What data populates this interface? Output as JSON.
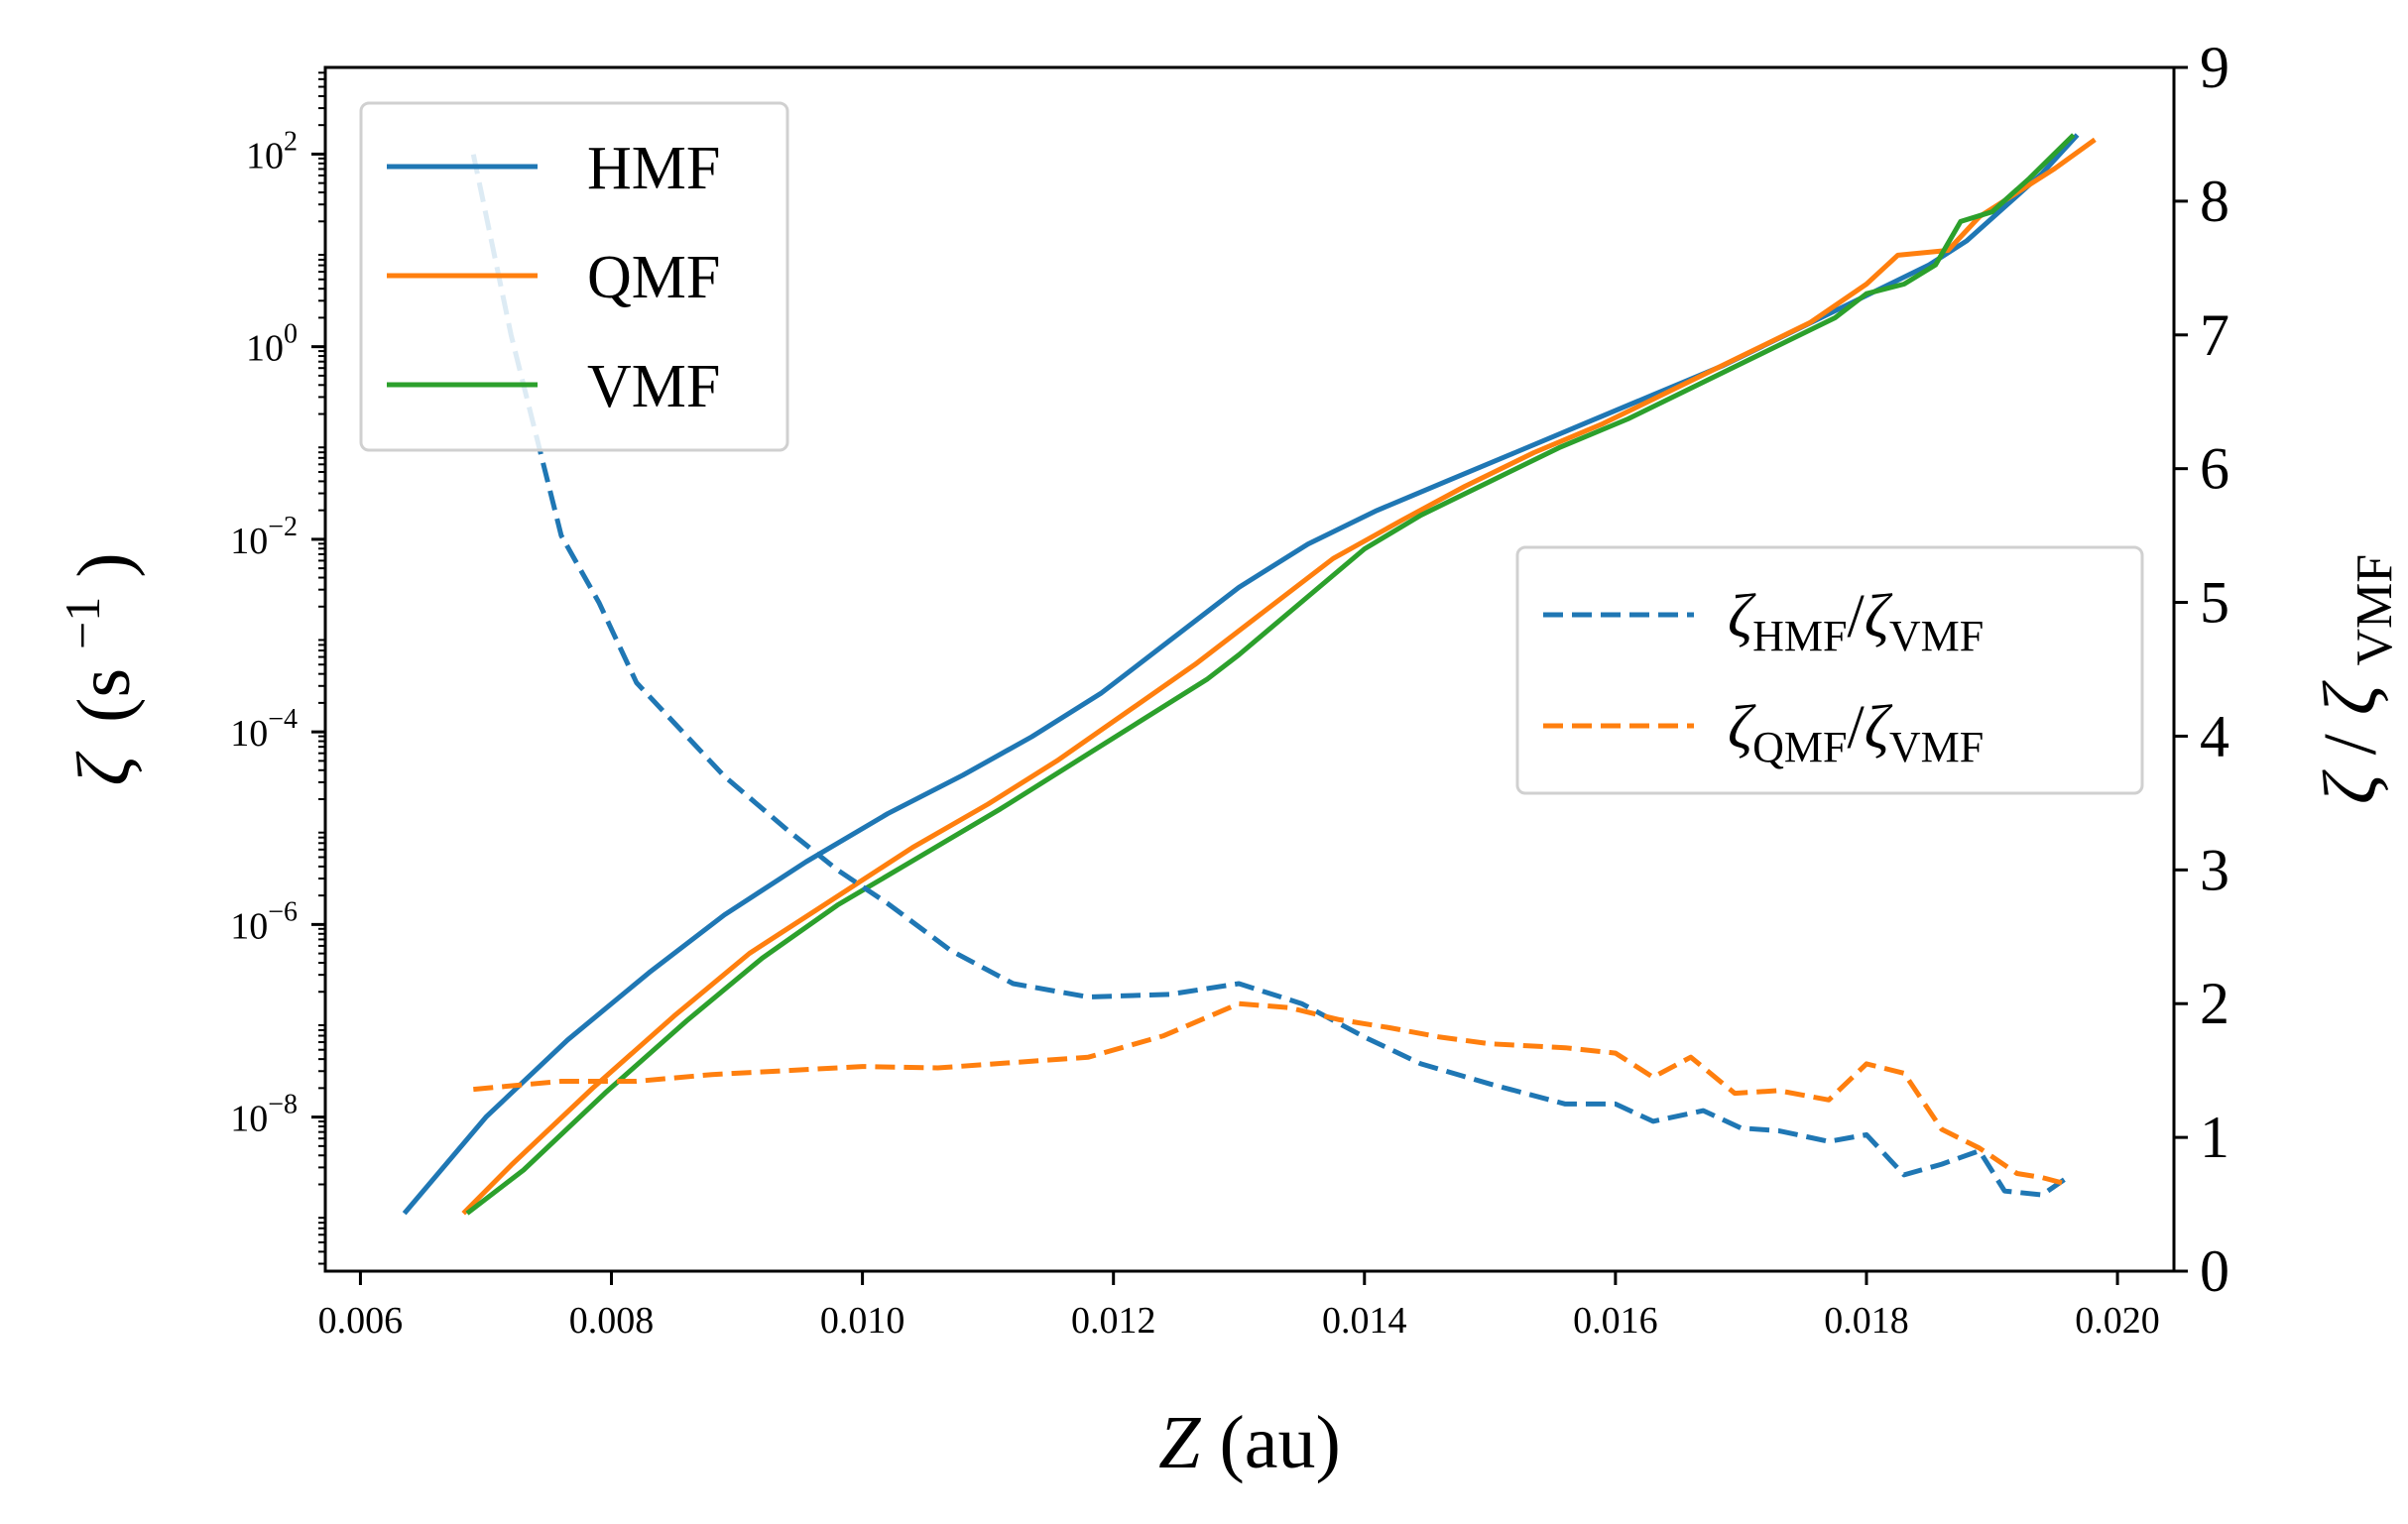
{
  "chart_data": {
    "type": "line",
    "xlabel_main": "Z",
    "xlabel_unit": "(au)",
    "ylabel_left_symbol": "ζ",
    "ylabel_left_unit": "(s",
    "ylabel_left_exp": "−1",
    "ylabel_left_close": ")",
    "ylabel_right_num": "ζ",
    "ylabel_right_slash": "/",
    "ylabel_right_den": "ζ",
    "ylabel_right_den_sub": "VMF",
    "xlim": [
      0.00572,
      0.02045
    ],
    "left_axis": {
      "scale": "log",
      "ylim_log10": [
        -9.6,
        2.9
      ],
      "ticks_log10": [
        2,
        0,
        -2,
        -4,
        -6,
        -8
      ],
      "tick_labels": [
        {
          "base": "10",
          "exp": "2"
        },
        {
          "base": "10",
          "exp": "0"
        },
        {
          "base": "10",
          "exp": "−2"
        },
        {
          "base": "10",
          "exp": "−4"
        },
        {
          "base": "10",
          "exp": "−6"
        },
        {
          "base": "10",
          "exp": "−8"
        }
      ]
    },
    "right_axis": {
      "scale": "linear",
      "ylim": [
        0,
        9
      ],
      "ticks": [
        0,
        1,
        2,
        3,
        4,
        5,
        6,
        7,
        8,
        9
      ],
      "tick_labels": [
        "0",
        "1",
        "2",
        "3",
        "4",
        "5",
        "6",
        "7",
        "8",
        "9"
      ]
    },
    "x_ticks": [
      0.006,
      0.008,
      0.01,
      0.012,
      0.014,
      0.016,
      0.018,
      0.02
    ],
    "x_tick_labels": [
      "0.006",
      "0.008",
      "0.010",
      "0.012",
      "0.014",
      "0.016",
      "0.018",
      "0.020"
    ],
    "series_left": [
      {
        "name": "HMF",
        "color": "#1f77b4",
        "x": [
          0.00635,
          0.007,
          0.00765,
          0.0083,
          0.0089,
          0.00955,
          0.0102,
          0.0108,
          0.01135,
          0.0119,
          0.01245,
          0.013,
          0.01355,
          0.0141,
          0.01465,
          0.0152,
          0.01575,
          0.0163,
          0.01685,
          0.0174,
          0.01795,
          0.0185,
          0.0188,
          0.0191,
          0.0194,
          0.01968
        ],
        "log10_y": [
          -9.0,
          -8.0,
          -7.2,
          -6.5,
          -5.9,
          -5.35,
          -4.85,
          -4.45,
          -4.05,
          -3.6,
          -3.05,
          -2.5,
          -2.05,
          -1.7,
          -1.4,
          -1.1,
          -0.8,
          -0.5,
          -0.2,
          0.15,
          0.5,
          0.85,
          1.1,
          1.45,
          1.8,
          2.2
        ]
      },
      {
        "name": "QMF",
        "color": "#ff7f0e",
        "x": [
          0.00682,
          0.0072,
          0.00785,
          0.0085,
          0.0091,
          0.00975,
          0.0104,
          0.011,
          0.01155,
          0.0121,
          0.01265,
          0.0132,
          0.01375,
          0.0143,
          0.0148,
          0.01535,
          0.0159,
          0.01645,
          0.017,
          0.01755,
          0.018,
          0.01825,
          0.01865,
          0.0189,
          0.0192,
          0.0195,
          0.01982
        ],
        "log10_y": [
          -9.0,
          -8.5,
          -7.7,
          -6.95,
          -6.3,
          -5.75,
          -5.2,
          -4.75,
          -4.3,
          -3.8,
          -3.3,
          -2.75,
          -2.2,
          -1.8,
          -1.45,
          -1.1,
          -0.8,
          -0.45,
          -0.1,
          0.25,
          0.65,
          0.95,
          1.0,
          1.35,
          1.6,
          1.85,
          2.15
        ]
      },
      {
        "name": "VMF",
        "color": "#2ca02c",
        "x": [
          0.00685,
          0.0073,
          0.00795,
          0.0086,
          0.0092,
          0.0098,
          0.01045,
          0.0111,
          0.01165,
          0.0122,
          0.01275,
          0.013,
          0.0135,
          0.014,
          0.01445,
          0.015,
          0.01555,
          0.0161,
          0.01665,
          0.0172,
          0.01775,
          0.018,
          0.0183,
          0.01855,
          0.01875,
          0.019,
          0.0193,
          0.01965
        ],
        "log10_y": [
          -9.0,
          -8.55,
          -7.75,
          -7.0,
          -6.35,
          -5.8,
          -5.3,
          -4.8,
          -4.35,
          -3.9,
          -3.45,
          -3.2,
          -2.65,
          -2.1,
          -1.75,
          -1.4,
          -1.05,
          -0.75,
          -0.4,
          -0.05,
          0.3,
          0.55,
          0.65,
          0.85,
          1.3,
          1.4,
          1.75,
          2.2
        ]
      }
    ],
    "series_right": [
      {
        "name": "ζHMF/ζVMF",
        "color": "#1f77b4",
        "dashed": true,
        "x": [
          0.0069,
          0.0072,
          0.0076,
          0.0079,
          0.0082,
          0.0085,
          0.0089,
          0.0094,
          0.0098,
          0.0102,
          0.0107,
          0.0112,
          0.0118,
          0.01245,
          0.013,
          0.0135,
          0.014,
          0.01445,
          0.015,
          0.0156,
          0.016,
          0.0163,
          0.0167,
          0.017,
          0.0173,
          0.0177,
          0.018,
          0.0183,
          0.0186,
          0.0189,
          0.0191,
          0.0194,
          0.0196
        ],
        "values": [
          8.35,
          7.0,
          5.5,
          5.0,
          4.4,
          4.1,
          3.7,
          3.3,
          3.0,
          2.75,
          2.4,
          2.15,
          2.05,
          2.07,
          2.15,
          2.0,
          1.75,
          1.55,
          1.4,
          1.25,
          1.25,
          1.12,
          1.2,
          1.07,
          1.05,
          0.97,
          1.02,
          0.72,
          0.8,
          0.9,
          0.6,
          0.57,
          0.7
        ]
      },
      {
        "name": "ζQMF/ζVMF",
        "color": "#ff7f0e",
        "dashed": true,
        "x": [
          0.0069,
          0.0076,
          0.0082,
          0.0088,
          0.0094,
          0.01,
          0.0106,
          0.0112,
          0.0118,
          0.0124,
          0.013,
          0.0134,
          0.0138,
          0.0142,
          0.0146,
          0.015,
          0.0156,
          0.016,
          0.0163,
          0.0166,
          0.01695,
          0.0173,
          0.0177,
          0.018,
          0.0183,
          0.0186,
          0.0189,
          0.0192,
          0.0194,
          0.0196
        ],
        "values": [
          1.36,
          1.42,
          1.42,
          1.47,
          1.5,
          1.53,
          1.52,
          1.56,
          1.6,
          1.76,
          2.0,
          1.97,
          1.88,
          1.82,
          1.75,
          1.7,
          1.67,
          1.63,
          1.45,
          1.6,
          1.33,
          1.35,
          1.28,
          1.55,
          1.48,
          1.06,
          0.92,
          0.73,
          0.7,
          0.65
        ]
      }
    ],
    "legend_upper_left": {
      "placement": "upper-left",
      "entries": [
        {
          "label": "HMF",
          "color": "#1f77b4"
        },
        {
          "label": "QMF",
          "color": "#ff7f0e"
        },
        {
          "label": "VMF",
          "color": "#2ca02c"
        }
      ]
    },
    "legend_right": {
      "placement": "center-right",
      "entries": [
        {
          "num": "ζ",
          "num_sub": "HMF",
          "slash": "/",
          "den": "ζ",
          "den_sub": "VMF",
          "color": "#1f77b4"
        },
        {
          "num": "ζ",
          "num_sub": "QMF",
          "slash": "/",
          "den": "ζ",
          "den_sub": "VMF",
          "color": "#ff7f0e"
        }
      ]
    }
  }
}
